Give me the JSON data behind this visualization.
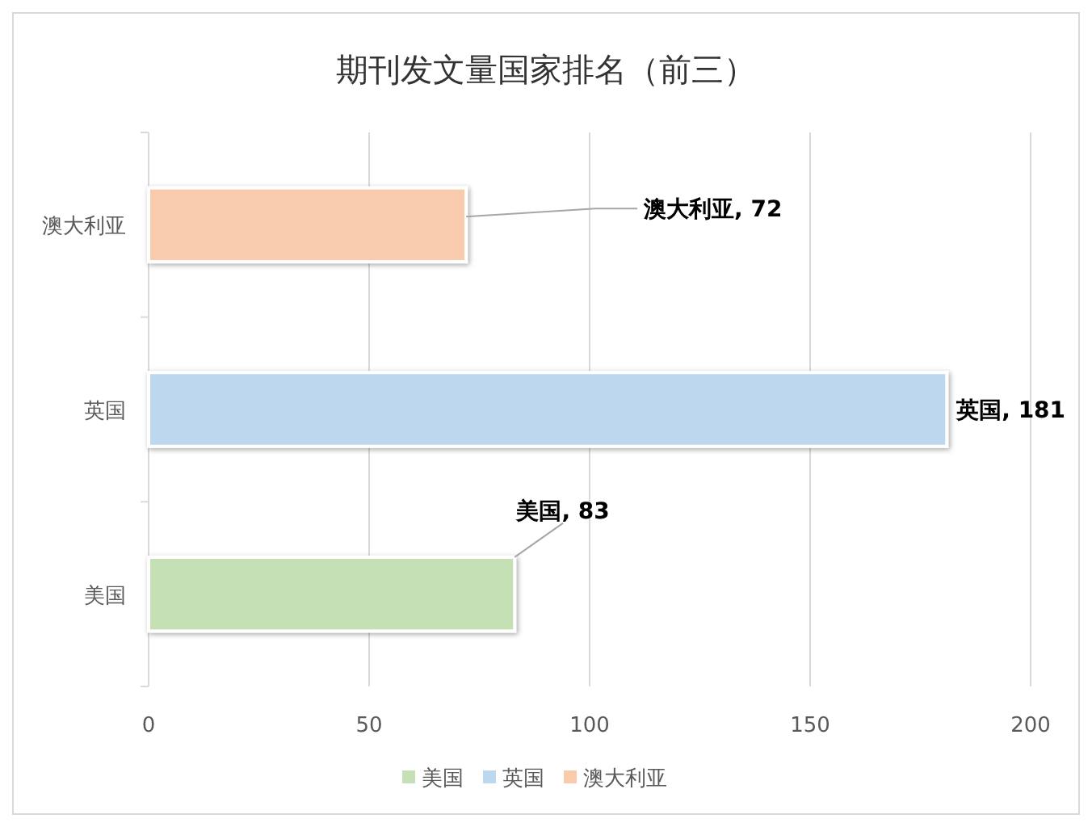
{
  "chart_data": {
    "type": "bar",
    "title": "期刊发文量国家排名（前三）",
    "orientation": "horizontal",
    "categories": [
      "澳大利亚",
      "英国",
      "美国"
    ],
    "series": [
      {
        "name": "美国",
        "color": "#c5e0b4",
        "values": [
          null,
          null,
          83
        ],
        "value_labels": [
          null,
          null,
          "美国, 83"
        ]
      },
      {
        "name": "英国",
        "color": "#bdd7ee",
        "values": [
          null,
          181,
          null
        ],
        "value_labels": [
          null,
          "英国, 181",
          null
        ]
      },
      {
        "name": "澳大利亚",
        "color": "#f8cbad",
        "values": [
          72,
          null,
          null
        ],
        "value_labels": [
          "澳大利亚, 72",
          null,
          null
        ]
      }
    ],
    "xlim": [
      0,
      200
    ],
    "xticks": [
      0,
      50,
      100,
      150,
      200
    ],
    "grid": "x",
    "legend": "bottom"
  }
}
